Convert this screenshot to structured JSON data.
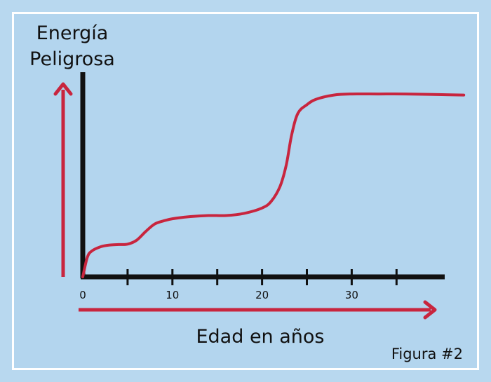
{
  "chart_data": {
    "type": "line",
    "ylabel_lines": [
      "Energía",
      "Peligrosa"
    ],
    "xlabel": "Edad en años",
    "x_tick_labels": [
      "0",
      "10",
      "20",
      "30"
    ],
    "x_ticks": [
      0,
      5,
      10,
      15,
      20,
      25,
      30,
      35
    ],
    "xlim": [
      0,
      41
    ],
    "ylim": [
      0,
      100
    ],
    "series": [
      {
        "values": [
          [
            0,
            0
          ],
          [
            0.5,
            9
          ],
          [
            1,
            12
          ],
          [
            2,
            14
          ],
          [
            3,
            14.8
          ],
          [
            4,
            15
          ],
          [
            5,
            15.2
          ],
          [
            6,
            17
          ],
          [
            7,
            21
          ],
          [
            8,
            24.5
          ],
          [
            9,
            26
          ],
          [
            10,
            27
          ],
          [
            12,
            28
          ],
          [
            14,
            28.5
          ],
          [
            16,
            28.5
          ],
          [
            18,
            29.5
          ],
          [
            20,
            32
          ],
          [
            21,
            35
          ],
          [
            22,
            42
          ],
          [
            22.7,
            52
          ],
          [
            23.3,
            66
          ],
          [
            24,
            76
          ],
          [
            25,
            80
          ],
          [
            26,
            82.5
          ],
          [
            28,
            84.5
          ],
          [
            30,
            85
          ],
          [
            33,
            85
          ],
          [
            36,
            85
          ],
          [
            42.5,
            84.5
          ]
        ]
      }
    ],
    "colors": {
      "curve": "#c8253e",
      "axis": "#111111",
      "arrow": "#c8253e",
      "background": "#b3d5ee"
    }
  },
  "caption": "Figura #2"
}
